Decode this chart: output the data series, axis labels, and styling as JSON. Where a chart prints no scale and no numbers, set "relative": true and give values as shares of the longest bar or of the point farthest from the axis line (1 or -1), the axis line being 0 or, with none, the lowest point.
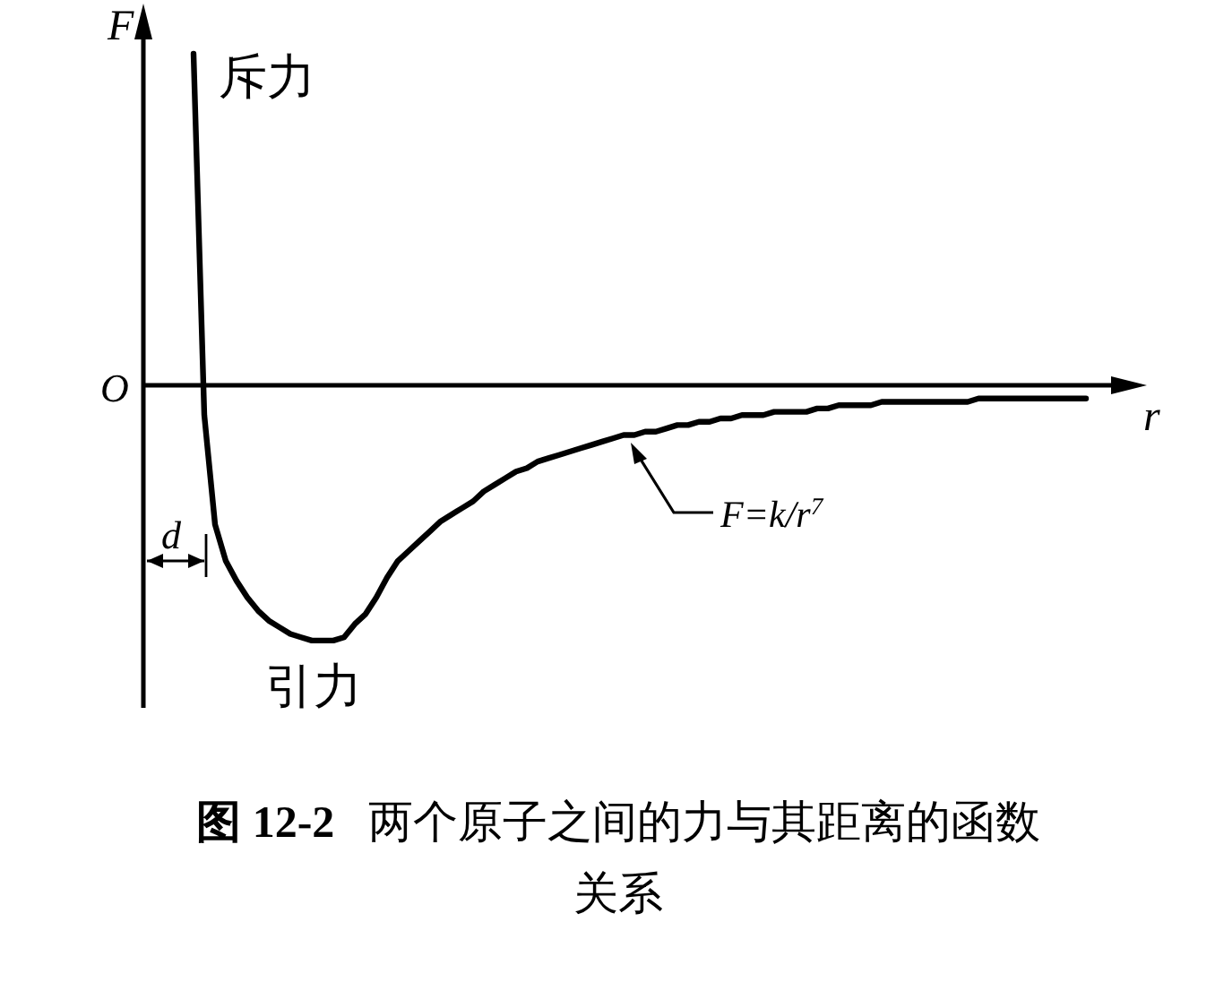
{
  "chart_data": {
    "type": "line",
    "relative": true,
    "title": "**图 12-2**  两个原子之间的力与其距离的函数关系",
    "xlabel": "r",
    "ylabel": "F",
    "color": "#000000",
    "categories": [
      null,
      null,
      null,
      null,
      null,
      null,
      null,
      null,
      null,
      null,
      null,
      null,
      null,
      null,
      null,
      null,
      null,
      null,
      null,
      null,
      null,
      null,
      null,
      null,
      null,
      null,
      null,
      null,
      null,
      null,
      null,
      null,
      null,
      null,
      null,
      null,
      null,
      null,
      null,
      null,
      null,
      null,
      null,
      null,
      null,
      null,
      null,
      null,
      null,
      null,
      null,
      null,
      null,
      null,
      null,
      null,
      null,
      null,
      null,
      null,
      null,
      null,
      null,
      null,
      null,
      null,
      null,
      null,
      null,
      null,
      null,
      null,
      null,
      null,
      null,
      null,
      null,
      null,
      null,
      null,
      null,
      null,
      null,
      null
    ],
    "values": [
      1.0,
      -0.09,
      -0.42,
      -0.53,
      -0.59,
      -0.64,
      -0.68,
      -0.71,
      -0.73,
      -0.75,
      -0.76,
      -0.77,
      -0.77,
      -0.77,
      -0.76,
      -0.72,
      -0.69,
      -0.64,
      -0.58,
      -0.53,
      -0.5,
      -0.47,
      -0.44,
      -0.41,
      -0.39,
      -0.37,
      -0.35,
      -0.32,
      -0.3,
      -0.28,
      -0.26,
      -0.25,
      -0.23,
      -0.22,
      -0.21,
      -0.2,
      -0.19,
      -0.18,
      -0.17,
      -0.16,
      -0.15,
      -0.15,
      -0.14,
      -0.14,
      -0.13,
      -0.12,
      -0.12,
      -0.11,
      -0.11,
      -0.1,
      -0.1,
      -0.09,
      -0.09,
      -0.09,
      -0.08,
      -0.08,
      -0.08,
      -0.08,
      -0.07,
      -0.07,
      -0.06,
      -0.06,
      -0.06,
      -0.06,
      -0.05,
      -0.05,
      -0.05,
      -0.05,
      -0.05,
      -0.05,
      -0.05,
      -0.05,
      -0.05,
      -0.04,
      -0.04,
      -0.04,
      -0.04,
      -0.04,
      -0.04,
      -0.04,
      -0.04,
      -0.04,
      -0.04,
      -0.04
    ],
    "annotations": [
      "斥力",
      "引力",
      "F=k/r$^{7}$",
      "d",
      "O"
    ]
  }
}
